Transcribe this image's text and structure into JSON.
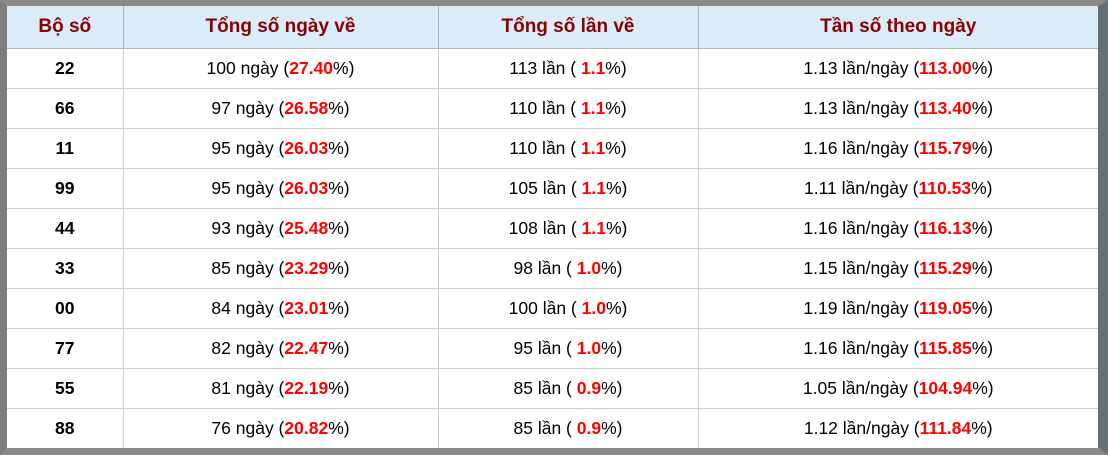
{
  "colors": {
    "header_bg": "#d9ecf7",
    "header_text": "#8b0000",
    "accent_red": "#ff0000",
    "frame_gray": "#8a8a8a",
    "grid_line": "#cccccc"
  },
  "table": {
    "columns": [
      "Bộ số",
      "Tổng số ngày về",
      "Tổng số lần về",
      "Tần số theo ngày"
    ],
    "rows": [
      {
        "pair": "22",
        "days": "100 ngày",
        "days_pct": "27.40",
        "times": "113 lần",
        "times_pct": "1.1",
        "freq": "1.13 lần/ngày",
        "freq_pct": "113.00"
      },
      {
        "pair": "66",
        "days": "97 ngày",
        "days_pct": "26.58",
        "times": "110 lần",
        "times_pct": "1.1",
        "freq": "1.13 lần/ngày",
        "freq_pct": "113.40"
      },
      {
        "pair": "11",
        "days": "95 ngày",
        "days_pct": "26.03",
        "times": "110 lần",
        "times_pct": "1.1",
        "freq": "1.16 lần/ngày",
        "freq_pct": "115.79"
      },
      {
        "pair": "99",
        "days": "95 ngày",
        "days_pct": "26.03",
        "times": "105 lần",
        "times_pct": "1.1",
        "freq": "1.11 lần/ngày",
        "freq_pct": "110.53"
      },
      {
        "pair": "44",
        "days": "93 ngày",
        "days_pct": "25.48",
        "times": "108 lần",
        "times_pct": "1.1",
        "freq": "1.16 lần/ngày",
        "freq_pct": "116.13"
      },
      {
        "pair": "33",
        "days": "85 ngày",
        "days_pct": "23.29",
        "times": "98 lần",
        "times_pct": "1.0",
        "freq": "1.15 lần/ngày",
        "freq_pct": "115.29"
      },
      {
        "pair": "00",
        "days": "84 ngày",
        "days_pct": "23.01",
        "times": "100 lần",
        "times_pct": "1.0",
        "freq": "1.19 lần/ngày",
        "freq_pct": "119.05"
      },
      {
        "pair": "77",
        "days": "82 ngày",
        "days_pct": "22.47",
        "times": "95 lần",
        "times_pct": "1.0",
        "freq": "1.16 lần/ngày",
        "freq_pct": "115.85"
      },
      {
        "pair": "55",
        "days": "81 ngày",
        "days_pct": "22.19",
        "times": "85 lần",
        "times_pct": "0.9",
        "freq": "1.05 lần/ngày",
        "freq_pct": "104.94"
      },
      {
        "pair": "88",
        "days": "76 ngày",
        "days_pct": "20.82",
        "times": "85 lần",
        "times_pct": "0.9",
        "freq": "1.12 lần/ngày",
        "freq_pct": "111.84"
      }
    ]
  }
}
